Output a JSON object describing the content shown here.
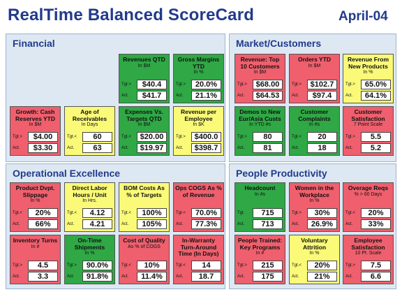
{
  "header": {
    "title": "RealTime Balanced ScoreCard",
    "date": "April-04"
  },
  "panels": [
    {
      "title": "Financial",
      "cards": [
        {
          "title": "Revenues QTD",
          "unit": "In $M",
          "tgt_label": "Tgt.>",
          "act_label": "Act.",
          "tgt": "$40.4",
          "act": "$41.7",
          "color": "#2fa845"
        },
        {
          "title": "Gross Margins YTD",
          "unit": "In %",
          "tgt_label": "Tgt.>",
          "act_label": "Act.",
          "tgt": "20.0%",
          "act": "21.1%",
          "color": "#2fa845"
        },
        {
          "title": "Growth: Cash Reserves YTD",
          "unit": "In $M",
          "tgt_label": "Tgt.>",
          "act_label": "Act.",
          "tgt": "$4.00",
          "act": "$3.30",
          "color": "#ef5f6d"
        },
        {
          "title": "Age of Receivables",
          "unit": "In Days",
          "tgt_label": "Tgt.<",
          "act_label": "Act.",
          "tgt": "60",
          "act": "63",
          "color": "#fafa78"
        },
        {
          "title": "Expenses Vs. Targets QTD",
          "unit": "In $M",
          "tgt_label": "Tgt.<",
          "act_label": "Act.",
          "tgt": "$20.00",
          "act": "$19.97",
          "color": "#2fa845"
        },
        {
          "title": "Revenue per Employee",
          "unit": "In $K",
          "tgt_label": "Tgt.>",
          "act_label": "Act.",
          "tgt": "$400.0",
          "act": "$398.7",
          "color": "#fafa78"
        }
      ]
    },
    {
      "title": "Market/Customers",
      "cards": [
        {
          "title": "Revenue: Top 10 Customers",
          "unit": "In $M",
          "tgt_label": "Tgt.>",
          "act_label": "Act.",
          "tgt": "$68.00",
          "act": "$64.53",
          "color": "#ef5f6d"
        },
        {
          "title": "Orders YTD",
          "unit": "In $M",
          "tgt_label": "Tgt.>",
          "act_label": "Act.",
          "tgt": "$102.7",
          "act": "$97.4",
          "color": "#ef5f6d"
        },
        {
          "title": "Revenue From New Products",
          "unit": "In %",
          "tgt_label": "Tgt.>",
          "act_label": "Act.",
          "tgt": "65.0%",
          "act": "64.1%",
          "color": "#fafa78"
        },
        {
          "title": "Demos to New Eur/Asia Custs",
          "unit": "In YTD #s",
          "tgt_label": "Tgt.>",
          "act_label": "Act.",
          "tgt": "80",
          "act": "81",
          "color": "#2fa845"
        },
        {
          "title": "Customer Complaints",
          "unit": "In #s",
          "tgt_label": "Tgt.<",
          "act_label": "Act.",
          "tgt": "20",
          "act": "18",
          "color": "#2fa845"
        },
        {
          "title": "Customer Satisfaction",
          "unit": "7 Point Scale",
          "tgt_label": "Tgt.>",
          "act_label": "Act.",
          "tgt": "5.5",
          "act": "5.2",
          "color": "#ef5f6d"
        }
      ]
    },
    {
      "title": "Operational Excellence",
      "cards": [
        {
          "title": "Product Dvpt. Slippage",
          "unit": "In %",
          "tgt_label": "Tgt.<",
          "act_label": "Act.",
          "tgt": "20%",
          "act": "66%",
          "color": "#ef5f6d"
        },
        {
          "title": "Direct Labor Hours / Unit",
          "unit": "In Hrs.",
          "tgt_label": "Tgt.<",
          "act_label": "Act.",
          "tgt": "4.12",
          "act": "4.21",
          "color": "#fafa78"
        },
        {
          "title": "BOM Costs As % of Targets",
          "unit": "",
          "tgt_label": "Tgt.<",
          "act_label": "Act.",
          "tgt": "100%",
          "act": "105%",
          "color": "#fafa78"
        },
        {
          "title": "Ops COGS As % of Revenue",
          "unit": "",
          "tgt_label": "Tgt.<",
          "act_label": "Act.",
          "tgt": "70.0%",
          "act": "77.3%",
          "color": "#ef5f6d"
        },
        {
          "title": "Inventory Turns",
          "unit": "In #",
          "tgt_label": "Tgt.>",
          "act_label": "Act.",
          "tgt": "4.5",
          "act": "3.3",
          "color": "#ef5f6d"
        },
        {
          "title": "On-Time Shipments",
          "unit": "In %",
          "tgt_label": "Tgt.>",
          "act_label": "Act.",
          "tgt": "90.0%",
          "act": "91.8%",
          "color": "#2fa845"
        },
        {
          "title": "Cost of Quality",
          "unit": "As % of COGS",
          "tgt_label": "Tgt.<",
          "act_label": "Act.",
          "tgt": "10%",
          "act": "11.4%",
          "color": "#ef5f6d"
        },
        {
          "title": "In-Warranty Turn-Around Time (In Days)",
          "unit": "",
          "tgt_label": "Tgt.<",
          "act_label": "Act.",
          "tgt": "14",
          "act": "18.7",
          "color": "#ef5f6d"
        }
      ]
    },
    {
      "title": "People Productivity",
      "cards": [
        {
          "title": "Headcount",
          "unit": "In #s",
          "tgt_label": "Tgt.",
          "act_label": "Act.",
          "tgt": "715",
          "act": "713",
          "color": "#2fa845"
        },
        {
          "title": "Women in the Workplace",
          "unit": "In %",
          "tgt_label": "Tgt.>",
          "act_label": "Act.",
          "tgt": "30%",
          "act": "26.9%",
          "color": "#ef5f6d"
        },
        {
          "title": "Overage Reqs",
          "unit": "% > 60 Days",
          "tgt_label": "Tgt.<",
          "act_label": "Act.",
          "tgt": "20%",
          "act": "33%",
          "color": "#ef5f6d"
        },
        {
          "title": "People Trained: Key Programs",
          "unit": "In #",
          "tgt_label": "Tgt.>",
          "act_label": "Act.",
          "tgt": "215",
          "act": "175",
          "color": "#ef5f6d"
        },
        {
          "title": "Voluntary Attrition",
          "unit": "In %",
          "tgt_label": "Tgt.<",
          "act_label": "Act.",
          "tgt": "20%",
          "act": "21%",
          "color": "#fafa78"
        },
        {
          "title": "Employee Satisfaction",
          "unit": "10 Pt. Scale",
          "tgt_label": "Tgt.>",
          "act_label": "Act.",
          "tgt": "7.5",
          "act": "6.6",
          "color": "#ef5f6d"
        }
      ]
    }
  ]
}
